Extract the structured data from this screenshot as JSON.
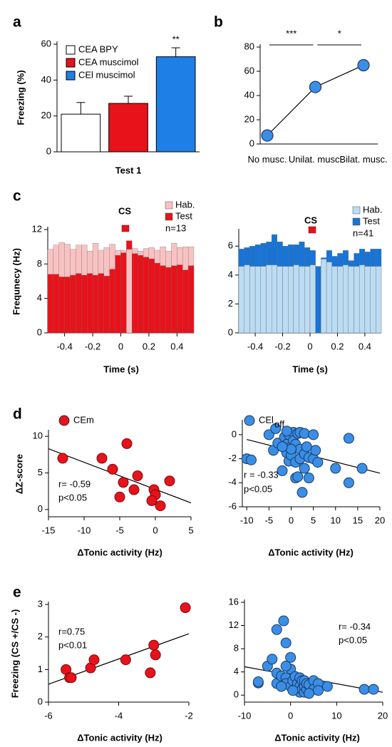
{
  "chart_data": [
    {
      "type": "bar",
      "panel": "a",
      "ylabel": "Freezing (%)",
      "xlabel": "Test 1",
      "categories": [
        "CEA BPY",
        "CEA muscimol",
        "CEl muscimol"
      ],
      "values": [
        21,
        27,
        53
      ],
      "errors": [
        6.5,
        4,
        5
      ],
      "colors": [
        "#ffffff",
        "#e8121b",
        "#1e7fe6"
      ],
      "ylim": [
        0,
        60
      ],
      "yticks": [
        0,
        20,
        40,
        60
      ],
      "annotations": [
        "**"
      ]
    },
    {
      "type": "line",
      "panel": "b",
      "categories": [
        "No musc.",
        "Unilat. musc.",
        "Bilat. musc."
      ],
      "values": [
        7,
        47,
        65
      ],
      "color": "#3a8ee6",
      "ylim": [
        0,
        80
      ],
      "yticks": [
        0,
        20,
        40,
        60,
        80
      ],
      "annotations": [
        "***",
        "*"
      ]
    },
    {
      "type": "histogram",
      "panel": "c",
      "ylabel": "Frequnecy (Hz)",
      "xlabel": "Time (s)",
      "annotations": [
        "CS",
        "n=13"
      ],
      "bins": [
        -0.52,
        -0.48,
        -0.44,
        -0.4,
        -0.36,
        -0.32,
        -0.28,
        -0.24,
        -0.2,
        -0.16,
        -0.12,
        -0.08,
        -0.04,
        0,
        0.04,
        0.08,
        0.12,
        0.16,
        0.2,
        0.24,
        0.28,
        0.32,
        0.36,
        0.4,
        0.44,
        0.48,
        0.52
      ],
      "series": [
        {
          "name": "Hab.",
          "color": "#f9c2c2",
          "values": [
            9.7,
            10.2,
            10.5,
            10.3,
            9.7,
            10.2,
            10.2,
            9.5,
            10.4,
            9.6,
            9.9,
            10.3,
            9.6,
            9.6,
            9.7,
            9.8,
            9.5,
            9.8,
            9.9,
            9.6,
            10.0,
            9.5,
            10.4,
            9.9,
            10.0,
            10.0
          ]
        },
        {
          "name": "Test",
          "color": "#e8121b",
          "values": [
            6.8,
            6.8,
            6.5,
            6.5,
            6.7,
            6.9,
            6.7,
            6.9,
            6.7,
            6.9,
            6.6,
            7.4,
            9.0,
            9.3,
            10.7,
            9.2,
            9.0,
            8.8,
            8.6,
            8.1,
            7.8,
            7.6,
            7.8,
            7.9,
            7.3,
            7.8
          ]
        }
      ],
      "xlim": [
        -0.52,
        0.52
      ],
      "xticks": [
        -0.4,
        -0.2,
        0,
        0.2,
        0.4
      ],
      "ylim": [
        0,
        12
      ],
      "yticks": [
        0,
        4,
        8,
        12
      ]
    },
    {
      "type": "histogram",
      "xlabel": "Time (s)",
      "annotations": [
        "CS",
        "n=41"
      ],
      "bins": [
        -0.52,
        -0.48,
        -0.44,
        -0.4,
        -0.36,
        -0.32,
        -0.28,
        -0.24,
        -0.2,
        -0.16,
        -0.12,
        -0.08,
        -0.04,
        0,
        0.04,
        0.08,
        0.12,
        0.16,
        0.2,
        0.24,
        0.28,
        0.32,
        0.36,
        0.4,
        0.44,
        0.48,
        0.52
      ],
      "series": [
        {
          "name": "Hab.",
          "color": "#bcdcf3",
          "values": [
            4.6,
            4.7,
            4.6,
            4.6,
            4.6,
            4.7,
            4.7,
            4.6,
            4.6,
            4.6,
            4.7,
            4.6,
            4.6,
            4.7,
            4.6,
            5.1,
            4.9,
            4.6,
            4.6,
            4.7,
            4.6,
            4.6,
            4.7,
            4.6,
            4.6,
            4.6
          ]
        },
        {
          "name": "Test",
          "color": "#1874d6",
          "values": [
            5.8,
            5.9,
            6.0,
            6.1,
            6.2,
            6.3,
            6.8,
            6.3,
            6.0,
            6.1,
            6.1,
            6.3,
            5.9,
            5.7,
            4.6,
            5.2,
            5.7,
            5.3,
            5.5,
            5.7,
            5.0,
            5.5,
            5.8,
            5.6,
            5.8,
            5.8
          ]
        }
      ],
      "xlim": [
        -0.52,
        0.52
      ],
      "xticks": [
        -0.4,
        -0.2,
        0,
        0.2,
        0.4
      ],
      "ylim": [
        0,
        7
      ],
      "yticks": [
        0,
        2,
        4,
        6
      ]
    },
    {
      "type": "scatter",
      "panel": "d",
      "ylabel": "ΔZ-score",
      "xlabel": "ΔTonic activity (Hz)",
      "annotations": [
        "r= -0.59",
        "p<0.05"
      ],
      "series": [
        {
          "name": "CEm",
          "color": "#e8121b",
          "x": [
            -13,
            -7.5,
            -6,
            -4,
            -4.5,
            -5,
            -3,
            -2.5,
            -0.2,
            0,
            -0.5,
            0.7,
            2
          ],
          "y": [
            7,
            7,
            5.5,
            9,
            3.7,
            1.7,
            2.7,
            4.6,
            2.7,
            2,
            1.2,
            0.5,
            3.9
          ]
        }
      ],
      "fit": {
        "x": [
          -15,
          5
        ],
        "y": [
          8.3,
          0.9
        ]
      },
      "xlim": [
        -15,
        5
      ],
      "xticks": [
        -15,
        -10,
        -5,
        0,
        5
      ],
      "ylim": [
        -1,
        10.5
      ],
      "yticks": [
        0,
        5,
        10
      ]
    },
    {
      "type": "scatter",
      "xlabel": "ΔTonic activity (Hz)",
      "annotations": [
        "r = -0.33",
        "p<0.05"
      ],
      "series": [
        {
          "name": "CEl",
          "name_sub": "off",
          "color": "#3a8ee6",
          "x": [
            -10,
            -9,
            -5,
            -4,
            -3.5,
            -3,
            -2,
            -1.5,
            -1,
            -1,
            -0.5,
            -0.5,
            0,
            0,
            0.5,
            0.5,
            1,
            1,
            1,
            1.5,
            1.5,
            2,
            2,
            2,
            2.5,
            3,
            3,
            3,
            4,
            4,
            5,
            5,
            5.5,
            6,
            10,
            13,
            13,
            16,
            -1,
            0,
            -2,
            3.5
          ],
          "y": [
            -2,
            -2.1,
            0,
            -1.3,
            0.5,
            -0.7,
            -3,
            -0.2,
            -0.8,
            -1.5,
            0,
            -2.2,
            -1,
            -1.7,
            0.2,
            -0.5,
            -0.8,
            -2.3,
            -3.6,
            -3.5,
            0.1,
            -1.2,
            -2,
            0.2,
            -4.8,
            -1.6,
            -2.8,
            0.1,
            -3.6,
            -1.9,
            0,
            -2,
            -1.3,
            -2.3,
            -2.8,
            -0.3,
            -4,
            -2.8,
            0.3,
            -1.2,
            -1,
            -1
          ]
        }
      ],
      "fit": {
        "x": [
          -10,
          20
        ],
        "y": [
          -0.4,
          -3.2
        ]
      },
      "xlim": [
        -11,
        20
      ],
      "xticks": [
        -10,
        -5,
        0,
        5,
        10,
        15,
        20
      ],
      "ylim": [
        -6,
        1
      ],
      "yticks": [
        -6,
        -4,
        -2,
        0
      ]
    },
    {
      "type": "scatter",
      "panel": "e",
      "ylabel": "Freezing (CS +/CS -)",
      "xlabel": "ΔTonic activity (Hz)",
      "annotations": [
        "r=0.75",
        "p<0.01"
      ],
      "series": [
        {
          "color": "#e8121b",
          "x": [
            -5.5,
            -5.4,
            -5.35,
            -4.8,
            -4.7,
            -3.8,
            -3.1,
            -3,
            -2.95,
            -2.1
          ],
          "y": [
            1.0,
            0.75,
            0.75,
            1.05,
            1.3,
            1.3,
            0.9,
            1.75,
            1.45,
            2.9
          ]
        }
      ],
      "fit": {
        "x": [
          -6,
          -2
        ],
        "y": [
          0.55,
          2.1
        ]
      },
      "xlim": [
        -6,
        -2
      ],
      "xticks": [
        -6,
        -4,
        -2
      ],
      "ylim": [
        0,
        3
      ],
      "yticks": [
        0,
        1,
        2,
        3
      ]
    },
    {
      "type": "scatter",
      "xlabel": "ΔTonic activity (Hz)",
      "annotations": [
        "r= -0.34",
        "p<0.05"
      ],
      "series": [
        {
          "color": "#3a8ee6",
          "x": [
            -7,
            -7,
            -5,
            -4,
            -3,
            -3,
            -3,
            -2,
            -1.5,
            -1,
            -1,
            -1,
            0,
            0,
            0,
            0.5,
            1,
            1,
            1.5,
            2,
            2,
            2,
            2.5,
            2.5,
            3,
            3,
            3,
            3.5,
            3.5,
            4,
            5,
            5,
            6,
            6,
            8,
            16,
            18,
            -2,
            -1,
            0.5,
            4
          ],
          "y": [
            2.1,
            2.3,
            5,
            6.2,
            11.3,
            3.8,
            2,
            3.3,
            12.8,
            9,
            3,
            2,
            6.5,
            4.5,
            1.5,
            2.5,
            3.2,
            1,
            2,
            0.5,
            1.5,
            3,
            1,
            2.5,
            0.5,
            1.5,
            2.5,
            1,
            2,
            1.8,
            2.5,
            1,
            2,
            0.8,
            1.5,
            1,
            1,
            1.5,
            5,
            0.8,
            0.3
          ]
        }
      ],
      "fit": {
        "x": [
          -10,
          20
        ],
        "y": [
          4.9,
          0.5
        ]
      },
      "xlim": [
        -10,
        20
      ],
      "xticks": [
        -10,
        0,
        10,
        20
      ],
      "ylim": [
        -1.2,
        16
      ],
      "yticks": [
        0,
        4,
        8,
        12,
        16
      ]
    }
  ]
}
